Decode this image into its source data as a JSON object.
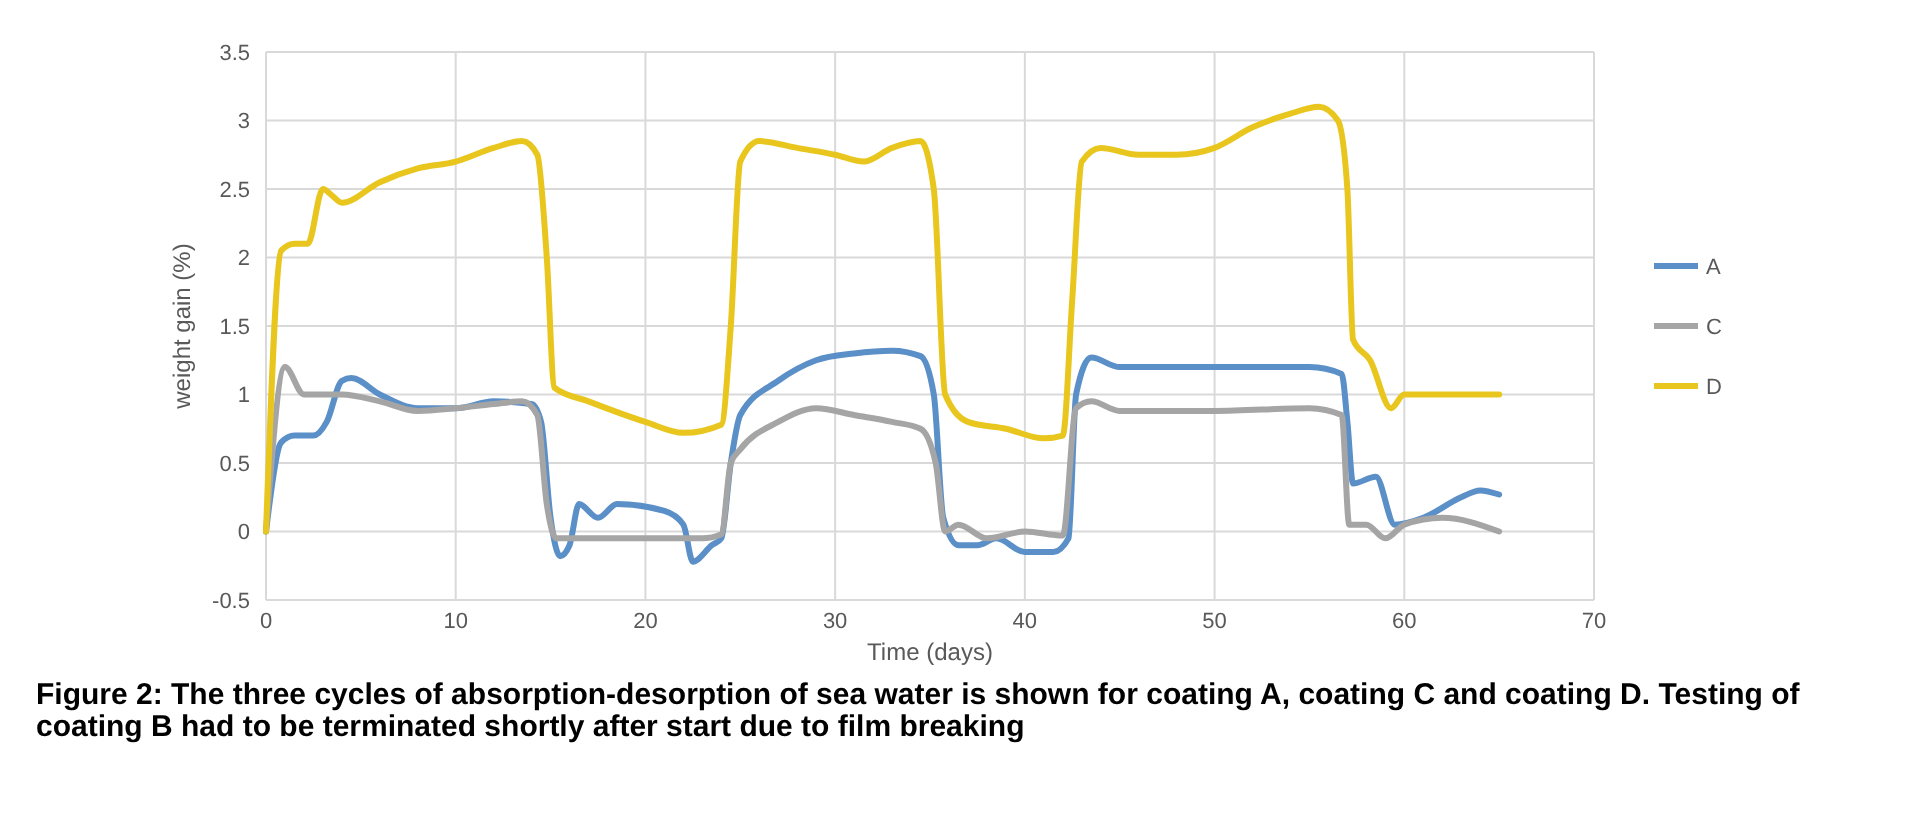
{
  "chart_data": {
    "type": "line",
    "xlabel": "Time (days)",
    "ylabel": "weight gain (%)",
    "xlim": [
      0,
      70
    ],
    "xticks": [
      0,
      10,
      20,
      30,
      40,
      50,
      60,
      70
    ],
    "ylim": [
      -0.5,
      3.5
    ],
    "yticks": [
      -0.5,
      0,
      0.5,
      1,
      1.5,
      2,
      2.5,
      3,
      3.5
    ],
    "grid": true,
    "legend": "right",
    "marker": "none",
    "line_style": "solid",
    "annotations": [
      "Figure 2: The three cycles of absorption-desorption of sea water is shown for coating A, coating C and coating D. Testing of coating B had to be terminated shortly after start due to film breaking"
    ],
    "series": [
      {
        "name": "A",
        "color": "#5b8fc7",
        "x": [
          0,
          0.8,
          1.5,
          2.5,
          3.2,
          4,
          4.5,
          6,
          8,
          10,
          12,
          14,
          14.5,
          15,
          15.5,
          16,
          16.5,
          17.5,
          18.5,
          21,
          22,
          22.5,
          23.5,
          24,
          24.5,
          25,
          27,
          29,
          31,
          33,
          34.5,
          35.2,
          35.7,
          36.5,
          37.5,
          38.5,
          40,
          41.5,
          42.3,
          42.7,
          43.5,
          45,
          50,
          55,
          56.7,
          57,
          57.3,
          58.5,
          59.5,
          61,
          63,
          64,
          65
        ],
        "values": [
          0,
          0.65,
          0.7,
          0.7,
          0.8,
          1.1,
          1.12,
          1.0,
          0.9,
          0.9,
          0.95,
          0.93,
          0.8,
          0.1,
          -0.18,
          -0.1,
          0.2,
          0.1,
          0.2,
          0.15,
          0.05,
          -0.22,
          -0.1,
          -0.05,
          0.5,
          0.85,
          1.1,
          1.25,
          1.3,
          1.32,
          1.28,
          1.0,
          0.1,
          -0.1,
          -0.1,
          -0.05,
          -0.15,
          -0.15,
          -0.05,
          1.0,
          1.27,
          1.2,
          1.2,
          1.2,
          1.15,
          0.8,
          0.35,
          0.4,
          0.05,
          0.1,
          0.25,
          0.3,
          0.27
        ]
      },
      {
        "name": "C",
        "color": "#a5a5a5",
        "x": [
          0,
          1,
          2,
          4,
          6,
          8,
          10,
          12,
          13.5,
          14.3,
          14.8,
          15.3,
          17,
          20,
          23,
          24,
          24.5,
          25,
          27,
          29,
          31,
          33,
          34.5,
          35.3,
          35.8,
          36.5,
          38,
          40,
          42,
          42.7,
          43.5,
          45,
          50,
          55,
          56.7,
          57.1,
          58,
          59,
          60,
          62,
          65
        ],
        "values": [
          0,
          1.2,
          1.0,
          1.0,
          0.95,
          0.88,
          0.9,
          0.93,
          0.95,
          0.85,
          0.2,
          -0.05,
          -0.05,
          -0.05,
          -0.05,
          -0.02,
          0.5,
          0.6,
          0.8,
          0.9,
          0.85,
          0.8,
          0.75,
          0.5,
          0.0,
          0.05,
          -0.05,
          0.0,
          -0.03,
          0.9,
          0.95,
          0.88,
          0.88,
          0.9,
          0.85,
          0.05,
          0.05,
          -0.05,
          0.05,
          0.1,
          0.0
        ]
      },
      {
        "name": "D",
        "color": "#e8c61e",
        "x": [
          0,
          0.8,
          1.5,
          2.2,
          3,
          3.5,
          4,
          6,
          8,
          10,
          12,
          13.5,
          14.3,
          14.8,
          15.2,
          17,
          20,
          22,
          24,
          24.5,
          25,
          26,
          28,
          30,
          31.5,
          33,
          34.5,
          35.2,
          35.8,
          37,
          39,
          41,
          42,
          42.5,
          43,
          44,
          46,
          48,
          50,
          52,
          54,
          55.5,
          56.5,
          57,
          57.3,
          58.2,
          59.3,
          60,
          65
        ],
        "values": [
          0,
          2.05,
          2.1,
          2.1,
          2.5,
          2.45,
          2.4,
          2.55,
          2.65,
          2.7,
          2.8,
          2.85,
          2.75,
          2.0,
          1.05,
          0.95,
          0.8,
          0.72,
          0.78,
          1.5,
          2.7,
          2.85,
          2.8,
          2.75,
          2.7,
          2.8,
          2.85,
          2.5,
          1.0,
          0.8,
          0.75,
          0.68,
          0.7,
          1.7,
          2.7,
          2.8,
          2.75,
          2.75,
          2.8,
          2.95,
          3.05,
          3.1,
          3.0,
          2.5,
          1.4,
          1.25,
          0.9,
          1.0,
          1.0
        ]
      }
    ]
  }
}
